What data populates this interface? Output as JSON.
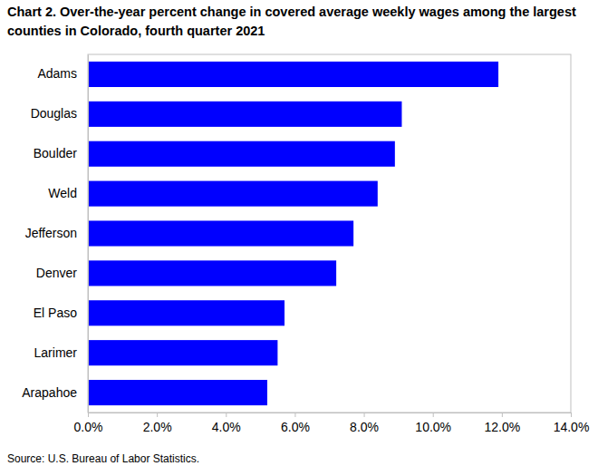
{
  "chart_data": {
    "type": "bar",
    "orientation": "horizontal",
    "title": "Chart 2. Over-the-year percent change in covered average weekly wages among the largest counties in Colorado, fourth quarter 2021",
    "source": "Source: U.S. Bureau of Labor Statistics.",
    "categories": [
      "Adams",
      "Douglas",
      "Boulder",
      "Weld",
      "Jefferson",
      "Denver",
      "El Paso",
      "Larimer",
      "Arapahoe"
    ],
    "values": [
      11.9,
      9.1,
      8.9,
      8.4,
      7.7,
      7.2,
      5.7,
      5.5,
      5.2
    ],
    "color": "#0000ff",
    "xlim": [
      0,
      14
    ],
    "xticks": [
      {
        "value": 0,
        "label": "0.0%"
      },
      {
        "value": 2,
        "label": "2.0%"
      },
      {
        "value": 4,
        "label": "4.0%"
      },
      {
        "value": 6,
        "label": "6.0%"
      },
      {
        "value": 8,
        "label": "8.0%"
      },
      {
        "value": 10,
        "label": "10.0%"
      },
      {
        "value": 12,
        "label": "12.0%"
      },
      {
        "value": 14,
        "label": "14.0%"
      }
    ],
    "grid": false
  }
}
